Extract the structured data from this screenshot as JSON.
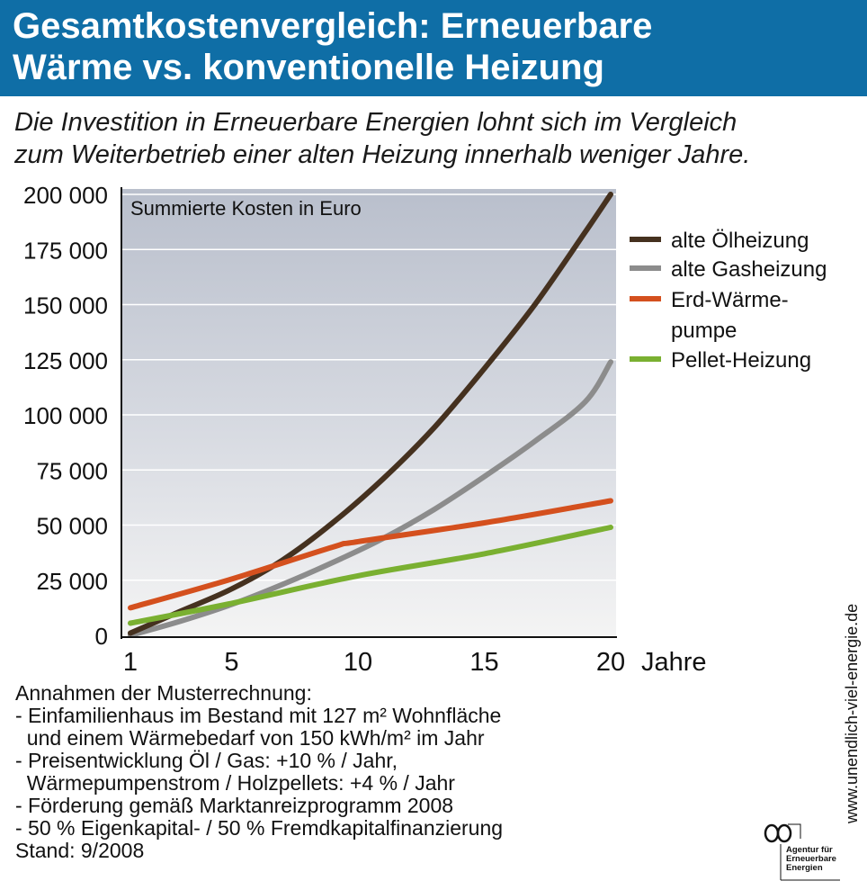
{
  "header": {
    "title_line1": "Gesamtkostenvergleich: Erneuerbare",
    "title_line2": "Wärme vs. konventionelle Heizung"
  },
  "subtitle": {
    "line1": "Die Investition in Erneuerbare Energien lohnt sich im Vergleich",
    "line2": "zum Weiterbetrieb einer alten Heizung innerhalb weniger Jahre."
  },
  "chart_data": {
    "type": "line",
    "title": "Summierte Kosten in Euro",
    "xlabel": "Jahre",
    "ylabel": "",
    "xlim": [
      1,
      20
    ],
    "ylim": [
      0,
      200000
    ],
    "x_ticks": [
      1,
      5,
      10,
      15,
      20
    ],
    "x_tick_labels": [
      "1",
      "5",
      "10",
      "15",
      "20"
    ],
    "y_ticks": [
      0,
      25000,
      50000,
      75000,
      100000,
      125000,
      150000,
      175000,
      200000
    ],
    "y_tick_labels": [
      "0",
      "25 000",
      "50 000",
      "75 000",
      "100 000",
      "125 000",
      "150 000",
      "175 000",
      "200 000"
    ],
    "grid": true,
    "legend_position": "right",
    "series": [
      {
        "name": "alte Ölheizung",
        "color": "#45311f",
        "x": [
          1,
          3,
          5,
          7,
          9,
          11,
          13,
          15,
          17,
          19,
          20
        ],
        "y": [
          1000,
          11000,
          21000,
          34000,
          51000,
          71000,
          94000,
          121000,
          150000,
          183000,
          200000
        ]
      },
      {
        "name": "alte Gasheizung",
        "color": "#8c8c8c",
        "x": [
          1,
          3,
          5,
          7,
          9,
          11,
          13,
          15,
          17,
          19,
          20
        ],
        "y": [
          0,
          6500,
          14000,
          23000,
          33000,
          44000,
          57000,
          72000,
          88000,
          106000,
          124000
        ]
      },
      {
        "name": "Erd-Wärme-pumpe",
        "legend_lines": [
          "Erd-Wärme-",
          "pumpe"
        ],
        "color": "#d4501e",
        "x": [
          1,
          5,
          9,
          10,
          15,
          20
        ],
        "y": [
          12500,
          25500,
          40000,
          42500,
          51000,
          61000
        ]
      },
      {
        "name": "Pellet-Heizung",
        "color": "#7ab031",
        "x": [
          1,
          5,
          10,
          15,
          20
        ],
        "y": [
          5500,
          14500,
          27000,
          37000,
          49000
        ]
      }
    ]
  },
  "notes": {
    "lines": [
      "Annahmen der Musterrechnung:",
      "- Einfamilienhaus im Bestand mit 127 m² Wohnfläche",
      "  und einem Wärmebedarf von 150 kWh/m² im Jahr",
      "- Preisentwicklung Öl / Gas: +10 % / Jahr,",
      "  Wärmepumpenstrom / Holzpellets: +4 % / Jahr",
      "- Förderung gemäß Marktanreizprogramm 2008",
      "- 50 % Eigenkapital- / 50 % Fremdkapitalfinanzierung",
      "Stand: 9/2008"
    ]
  },
  "source_url": "www.unendlich-viel-energie.de",
  "logo": {
    "lines": [
      "Agentur für",
      "Erneuerbare",
      "Energien"
    ]
  }
}
